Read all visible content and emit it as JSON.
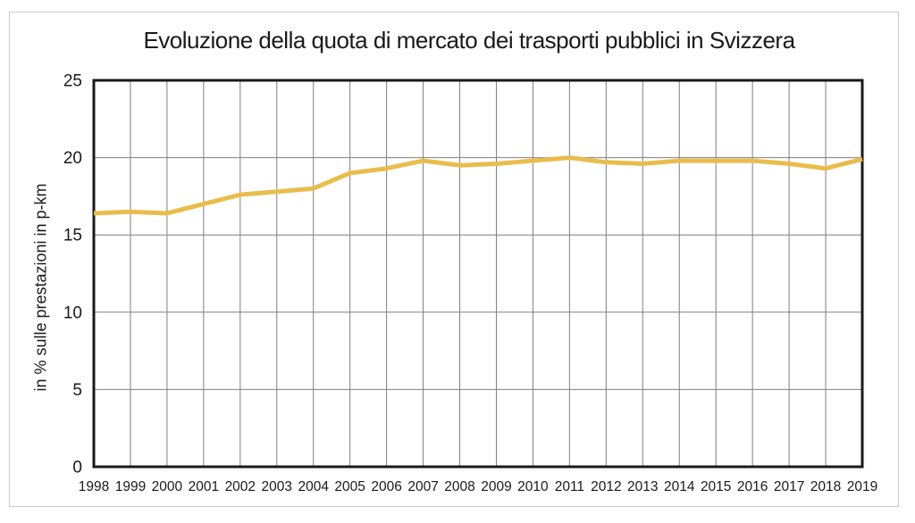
{
  "chart_data": {
    "type": "line",
    "title": "Evoluzione della quota di mercato dei trasporti pubblici in Svizzera",
    "xlabel": "",
    "ylabel": "in % sulle prestazioni in p-km",
    "x": [
      1998,
      1999,
      2000,
      2001,
      2002,
      2003,
      2004,
      2005,
      2006,
      2007,
      2008,
      2009,
      2010,
      2011,
      2012,
      2013,
      2014,
      2015,
      2016,
      2017,
      2018,
      2019
    ],
    "values": [
      16.4,
      16.5,
      16.4,
      17.0,
      17.6,
      17.8,
      18.0,
      19.0,
      19.3,
      19.8,
      19.5,
      19.6,
      19.8,
      20.0,
      19.7,
      19.6,
      19.8,
      19.8,
      19.8,
      19.6,
      19.3,
      19.9
    ],
    "ylim": [
      0,
      25
    ],
    "y_ticks": [
      0,
      5,
      10,
      15,
      20,
      25
    ],
    "grid": true,
    "legend": false
  },
  "colors": {
    "line": "#E9BD4C",
    "grid": "#7f7f7f",
    "plot_border": "#1a1a1a",
    "outer_border": "#c9c9c9",
    "text": "#1a1a1a"
  }
}
